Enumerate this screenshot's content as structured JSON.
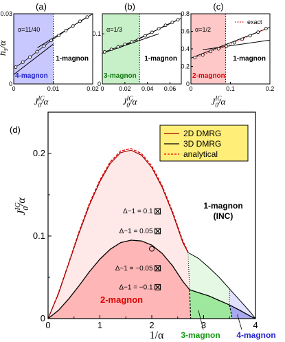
{
  "chart_data": [
    {
      "panel": "(a)",
      "type": "line",
      "ylabel": "h_s/α",
      "xlabel": "J_0^IC/α",
      "xlim": [
        0,
        0.02
      ],
      "ylim": [
        0,
        0.03
      ],
      "xticks": [
        "0",
        "0.01",
        "0.02"
      ],
      "yticks": [
        "0",
        "0.03"
      ],
      "alpha_label": "α=11/40",
      "boundary_x": 0.01,
      "regions": {
        "left": "4-magnon",
        "right": "1-magnon"
      },
      "left_color": "#c8c8ff",
      "left_label_color": "#2222cc",
      "points": [
        [
          0.0005,
          0.0072
        ],
        [
          0.0023,
          0.0093
        ],
        [
          0.0041,
          0.0115
        ],
        [
          0.0059,
          0.0138
        ],
        [
          0.0077,
          0.0162
        ],
        [
          0.0095,
          0.0186
        ],
        [
          0.0114,
          0.0207
        ],
        [
          0.0132,
          0.0228
        ],
        [
          0.015,
          0.0248
        ],
        [
          0.0168,
          0.0268
        ],
        [
          0.0186,
          0.0286
        ]
      ],
      "fit_left": [
        [
          0,
          0.004
        ],
        [
          0.01,
          0.017
        ]
      ],
      "fit_right": [
        [
          0.006,
          0.0155
        ],
        [
          0.02,
          0.03
        ]
      ]
    },
    {
      "panel": "(b)",
      "type": "line",
      "xlabel": "J_0^IC/α",
      "xlim": [
        0,
        0.07
      ],
      "ylim": [
        0,
        0.14
      ],
      "xticks": [
        "0",
        "0.02",
        "0.04",
        "0.06"
      ],
      "xtick_values": [
        0,
        0.02,
        0.04,
        0.06
      ],
      "yticks": [
        "0",
        "0.1"
      ],
      "ytick_values": [
        0,
        0.1
      ],
      "alpha_label": "α=1/3",
      "boundary_x": 0.033,
      "regions": {
        "left": "3-magnon",
        "right": "1-magnon"
      },
      "left_color": "#c8f0c8",
      "left_label_color": "#117711",
      "points": [
        [
          0.002,
          0.064
        ],
        [
          0.008,
          0.069
        ],
        [
          0.014,
          0.074
        ],
        [
          0.02,
          0.079
        ],
        [
          0.026,
          0.084
        ],
        [
          0.032,
          0.089
        ],
        [
          0.038,
          0.096
        ],
        [
          0.044,
          0.103
        ],
        [
          0.05,
          0.11
        ],
        [
          0.056,
          0.117
        ],
        [
          0.062,
          0.123
        ],
        [
          0.067,
          0.128
        ]
      ],
      "fit_left": [
        [
          0,
          0.061
        ],
        [
          0.05,
          0.1
        ]
      ],
      "fit_right": [
        [
          0.015,
          0.072
        ],
        [
          0.07,
          0.131
        ]
      ]
    },
    {
      "panel": "(c)",
      "type": "line",
      "xlabel": "J_0^IC/α",
      "xlim": [
        0,
        0.2
      ],
      "ylim": [
        0,
        0.8
      ],
      "xticks": [
        "0",
        "0.1",
        "0.2"
      ],
      "yticks": [
        "0",
        "0.2",
        "0.4",
        "0.6",
        "0.8"
      ],
      "alpha_label": "α=1/2",
      "boundary_x": 0.088,
      "regions": {
        "left": "2-magnon",
        "right": "1-magnon"
      },
      "left_color": "#ffc8c8",
      "left_label_color": "#dd0000",
      "legend": "exact",
      "points": [
        [
          0.01,
          0.3
        ],
        [
          0.03,
          0.33
        ],
        [
          0.05,
          0.37
        ],
        [
          0.07,
          0.4
        ],
        [
          0.09,
          0.43
        ],
        [
          0.11,
          0.47
        ],
        [
          0.13,
          0.51
        ],
        [
          0.15,
          0.55
        ],
        [
          0.17,
          0.59
        ],
        [
          0.19,
          0.63
        ]
      ],
      "fit_left": [
        [
          0,
          0.295
        ],
        [
          0.2,
          0.645
        ]
      ],
      "fit_right": [
        [
          0.03,
          0.39
        ],
        [
          0.2,
          0.5
        ]
      ]
    },
    {
      "panel": "(d)",
      "type": "line",
      "xlabel": "1/α",
      "ylabel": "J_0^IC/α",
      "xlim": [
        0,
        4
      ],
      "ylim": [
        0,
        0.25
      ],
      "xticks": [
        "0",
        "1",
        "2",
        "3",
        "4"
      ],
      "yticks": [
        "0",
        "0.1",
        "0.2"
      ],
      "legend": [
        "2D DMRG",
        "3D DMRG",
        "analytical"
      ],
      "legend_bg": "#ffee77",
      "series": [
        {
          "name": "2D DMRG",
          "x": [
            0,
            0.2,
            0.4,
            0.6,
            0.8,
            1.0,
            1.2,
            1.4,
            1.6,
            1.8,
            2.0,
            2.2,
            2.4,
            2.6,
            2.7
          ],
          "y": [
            0,
            0.03,
            0.067,
            0.104,
            0.138,
            0.166,
            0.188,
            0.201,
            0.204,
            0.198,
            0.183,
            0.159,
            0.128,
            0.092,
            0.08
          ]
        },
        {
          "name": "3D DMRG",
          "x": [
            0,
            0.2,
            0.4,
            0.6,
            0.8,
            1.0,
            1.2,
            1.4,
            1.6,
            1.8,
            2.0,
            2.2,
            2.4,
            2.6,
            2.73,
            2.9,
            3.1,
            3.3,
            3.5,
            3.7,
            3.9,
            4.0
          ],
          "y": [
            0,
            0.01,
            0.024,
            0.04,
            0.057,
            0.072,
            0.084,
            0.092,
            0.095,
            0.094,
            0.089,
            0.079,
            0.064,
            0.045,
            0.035,
            0.0315,
            0.0275,
            0.022,
            0.0165,
            0.01,
            0.003,
            0
          ]
        },
        {
          "name": "analytical",
          "x": [
            0,
            0.2,
            0.4,
            0.6,
            0.8,
            1.0,
            1.2,
            1.4,
            1.6,
            1.8,
            2.0,
            2.2,
            2.4,
            2.6,
            2.7
          ],
          "y": [
            0,
            0.031,
            0.068,
            0.106,
            0.14,
            0.168,
            0.19,
            0.203,
            0.206,
            0.2,
            0.185,
            0.161,
            0.13,
            0.094,
            0.081
          ]
        }
      ],
      "upper_boundary": {
        "x": [
          2.7,
          2.9,
          3.1,
          3.3,
          3.5,
          3.7,
          3.9,
          4.0
        ],
        "y": [
          0.08,
          0.073,
          0.062,
          0.05,
          0.036,
          0.022,
          0.008,
          0
        ]
      },
      "dotted_boundaries": [
        [
          [
            2.7,
            0.08
          ],
          [
            2.73,
            0.035
          ]
        ],
        [
          [
            3.5,
            0.036
          ],
          [
            3.5,
            0.0165
          ]
        ]
      ],
      "dashed_boundaries": [
        [
          [
            2.73,
            0.035
          ],
          [
            2.75,
            0
          ]
        ],
        [
          [
            3.5,
            0.0165
          ],
          [
            3.55,
            0
          ]
        ]
      ],
      "circle_marker": [
        2.0,
        0.0845
      ],
      "delta_labels": [
        {
          "text": "Δ−1 = 0.1",
          "x": 2.1,
          "y": 0.13
        },
        {
          "text": "Δ−1 = 0.05",
          "x": 2.1,
          "y": 0.106
        },
        {
          "text": "Δ−1 = −0.05",
          "x": 2.1,
          "y": 0.061
        },
        {
          "text": "Δ−1 = −0.1",
          "x": 2.1,
          "y": 0.038
        }
      ],
      "region_labels": {
        "one_magnon": "1-magnon",
        "inc": "(INC)",
        "two_magnon": "2-magnon",
        "three_magnon": "3-magnon",
        "four_magnon": "4-magnon"
      }
    }
  ]
}
